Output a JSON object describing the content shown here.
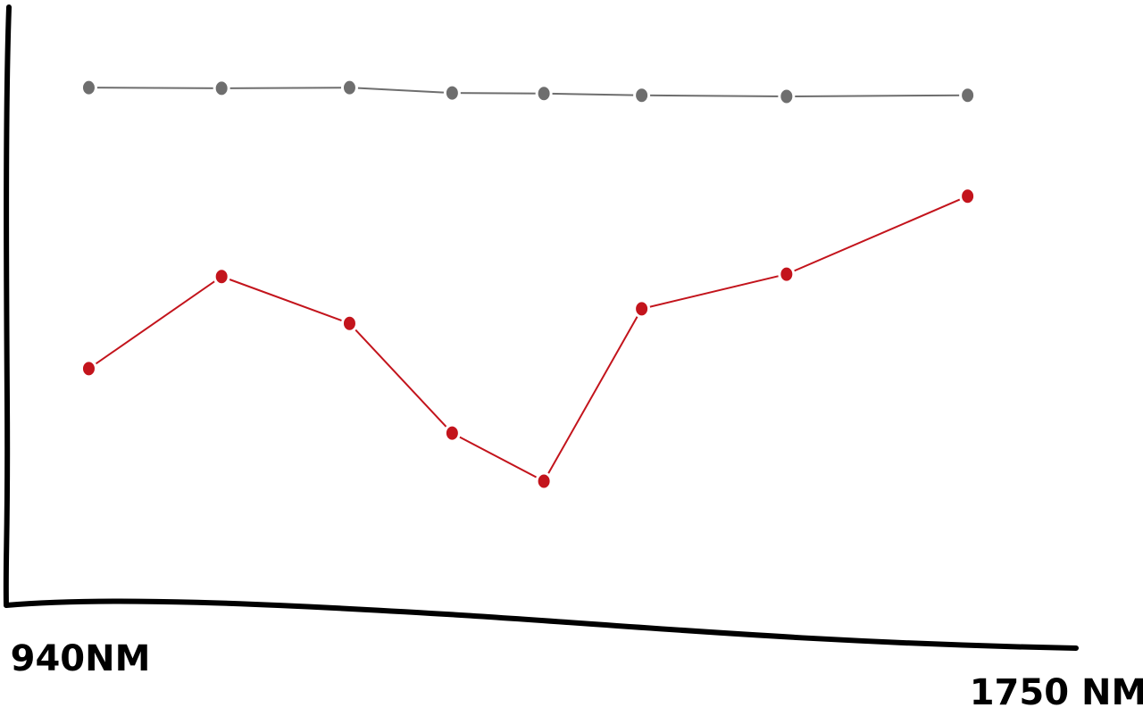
{
  "chart_data": {
    "type": "line",
    "x": [
      947,
      1057,
      1163,
      1248,
      1324,
      1405,
      1525,
      1675
    ],
    "xlim": [
      940,
      1750
    ],
    "xticks": [
      {
        "value": 940,
        "label": "940NM"
      },
      {
        "value": 1750,
        "label": "1750 NM"
      }
    ],
    "ylim": [
      0,
      100
    ],
    "series": [
      {
        "color": "#6e6e6e",
        "values": [
          88.1,
          88.0,
          88.1,
          87.2,
          87.1,
          86.8,
          86.6,
          86.8
        ]
      },
      {
        "color": "#c3141c",
        "values": [
          40.2,
          55.9,
          47.9,
          29.2,
          21.0,
          50.4,
          56.3,
          69.6
        ]
      }
    ]
  }
}
